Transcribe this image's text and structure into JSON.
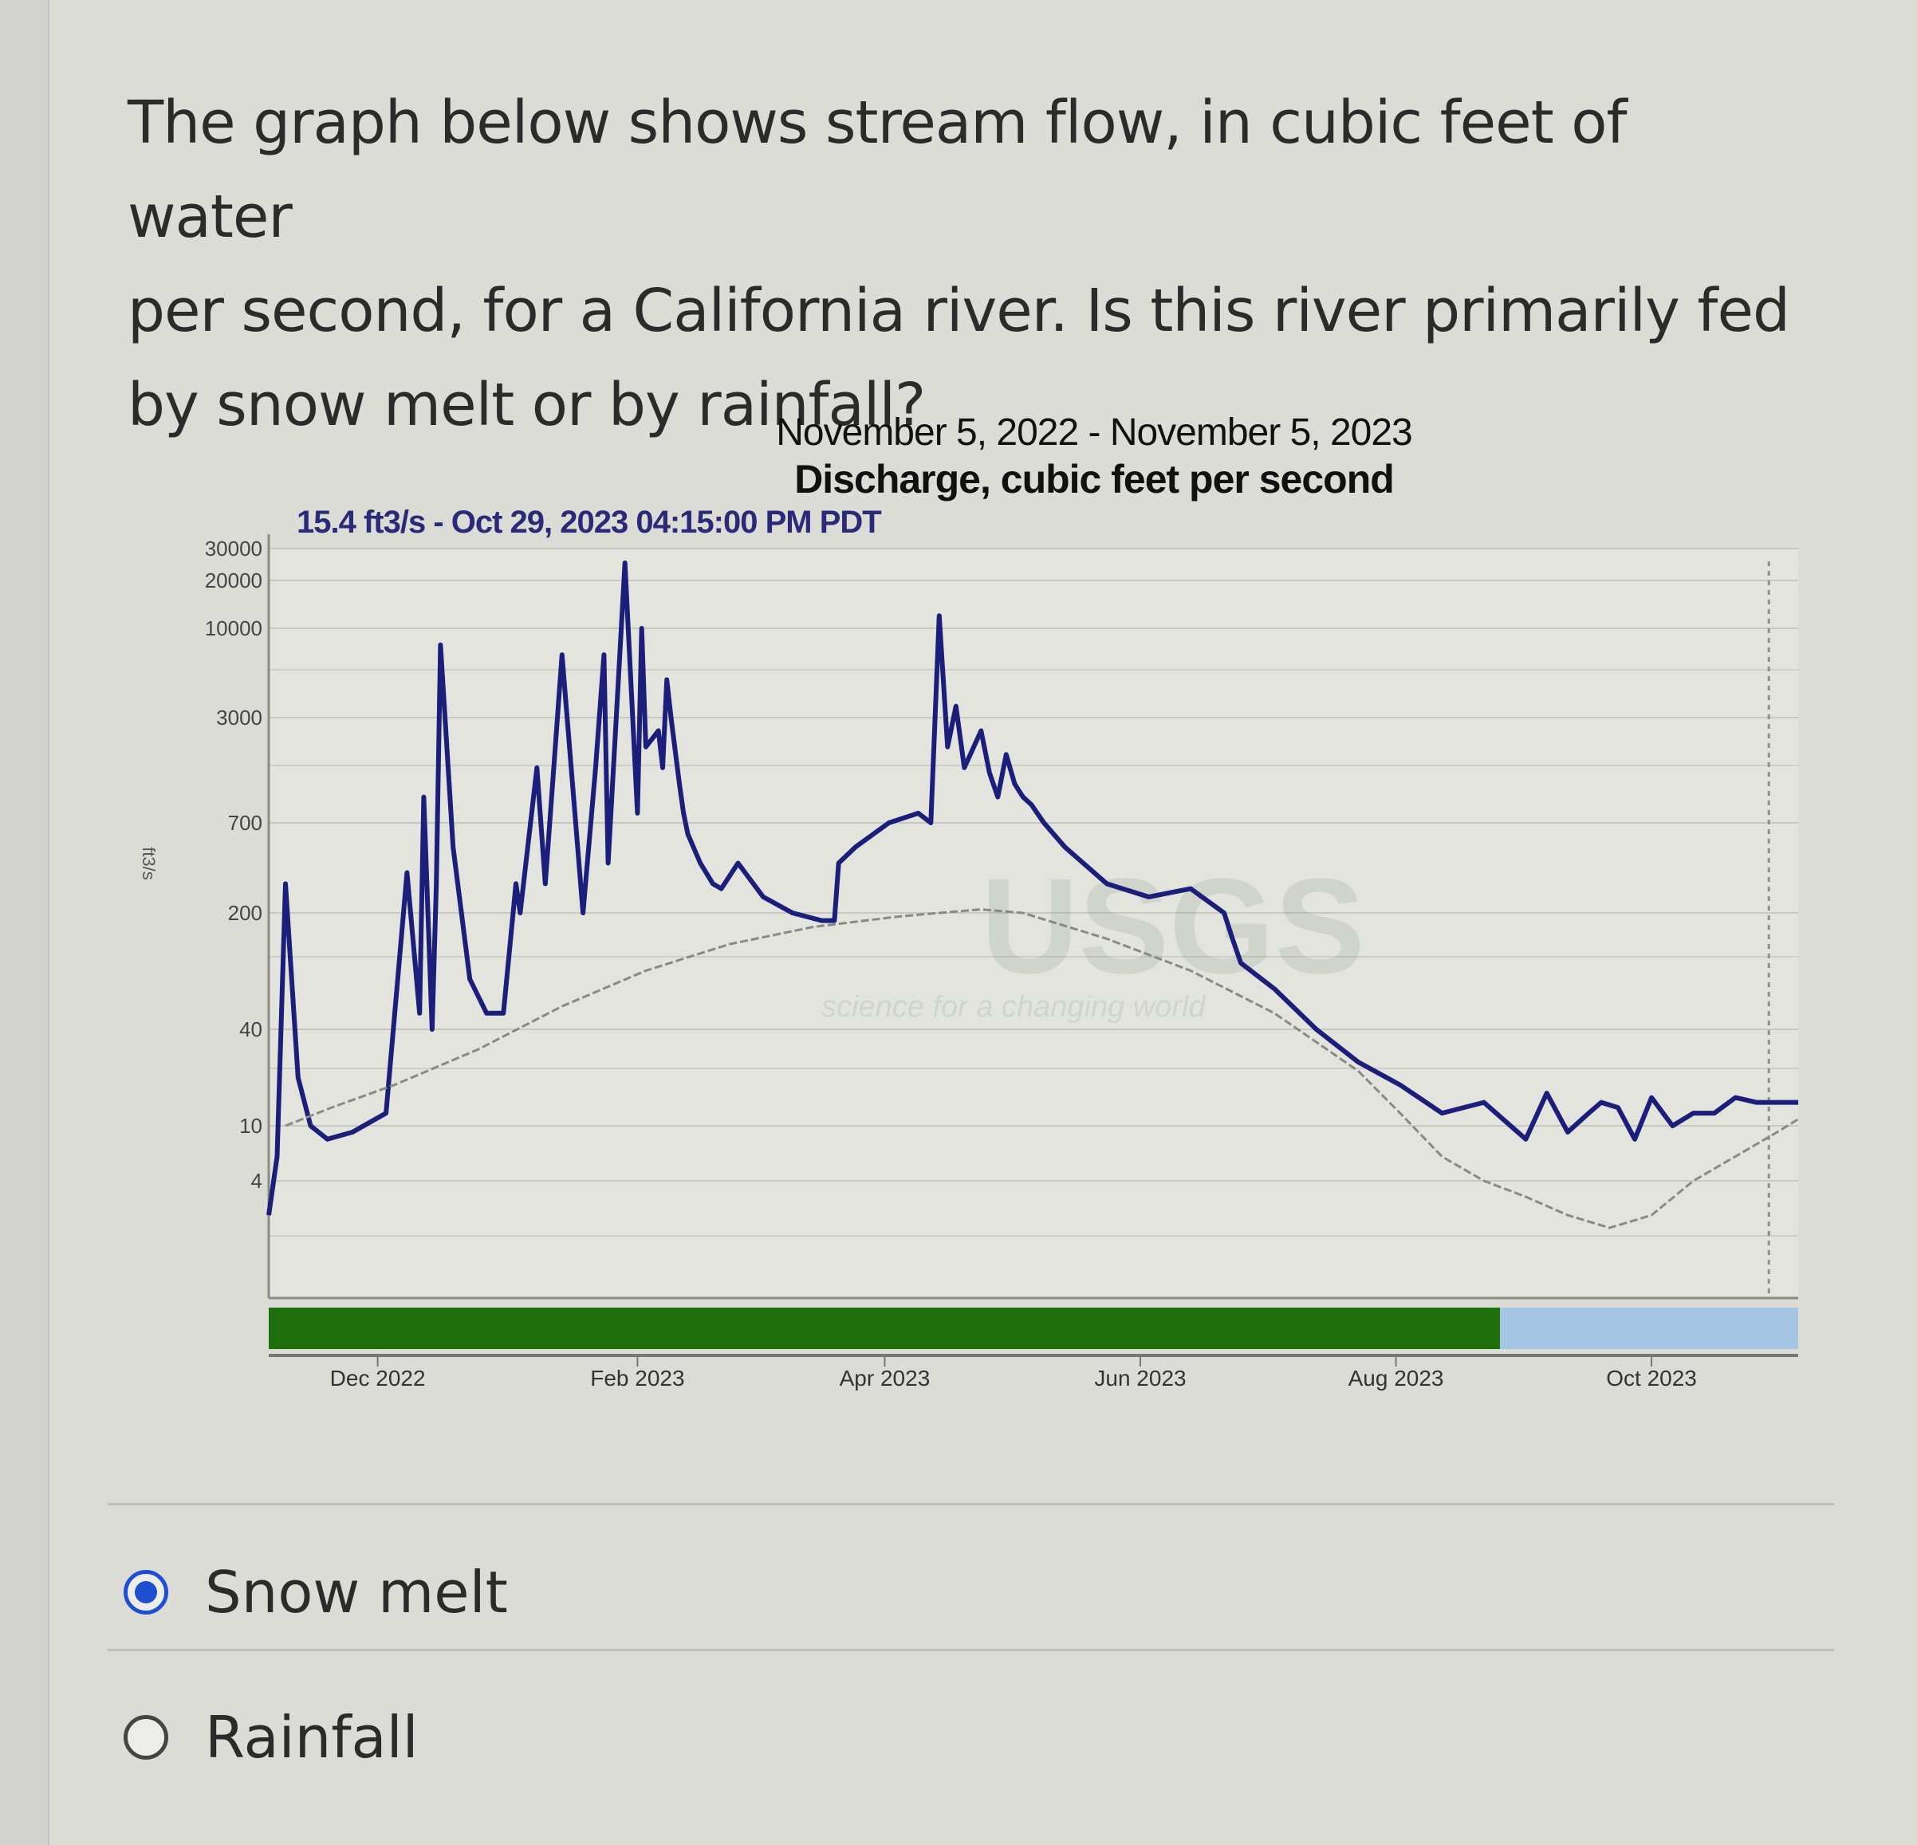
{
  "question": {
    "lines": [
      "The graph below shows stream flow, in cubic feet of water",
      "per second, for a California river. Is this river primarily fed",
      "by snow melt or by rainfall?"
    ]
  },
  "options": [
    {
      "label": "Snow melt",
      "selected": true
    },
    {
      "label": "Rainfall",
      "selected": false
    }
  ],
  "colors": {
    "discharge_line": "#1c1f7a",
    "median_line": "#8a8a85",
    "approved_bar": "#1f6e0c",
    "provisional_bar": "#a4c6e2",
    "selected_radio": "#1f4fd1"
  },
  "chart_data": {
    "type": "line",
    "title": "November 5, 2022 - November 5, 2023",
    "subtitle": "Discharge, cubic feet per second",
    "annotation": "15.4 ft3/s - Oct 29, 2023 04:15:00 PM PDT",
    "ylabel": "ft3/s",
    "yscale": "log",
    "y_ticks": [
      30000,
      20000,
      10000,
      3000,
      700,
      200,
      40,
      10,
      4
    ],
    "x_ticks": [
      "Dec 2022",
      "Feb 2023",
      "Apr 2023",
      "Jun 2023",
      "Aug 2023",
      "Oct 2023"
    ],
    "x_range": [
      "2022-11-05",
      "2023-11-05"
    ],
    "watermark": {
      "logo": "USGS",
      "tagline": "science for a changing world"
    },
    "approval_bar": {
      "approved_until_fraction": 0.805
    },
    "series": [
      {
        "name": "Discharge",
        "x_days": [
          0,
          2,
          4,
          7,
          10,
          14,
          20,
          28,
          33,
          36,
          37,
          39,
          40,
          41,
          44,
          48,
          52,
          56,
          59,
          60,
          64,
          66,
          70,
          75,
          78,
          80,
          81,
          85,
          88,
          89,
          90,
          93,
          94,
          95,
          96,
          98,
          99,
          100,
          103,
          106,
          108,
          112,
          118,
          125,
          132,
          135,
          136,
          140,
          148,
          155,
          158,
          160,
          162,
          164,
          166,
          170,
          172,
          174,
          176,
          178,
          180,
          182,
          185,
          190,
          200,
          210,
          220,
          228,
          230,
          232,
          240,
          250,
          260,
          270,
          280,
          290,
          300,
          305,
          310,
          315,
          318,
          322,
          326,
          330,
          335,
          340,
          345,
          350,
          355,
          360,
          365
        ],
        "values": [
          3,
          6,
          300,
          20,
          10,
          8,
          9,
          12,
          350,
          50,
          1000,
          40,
          300,
          8000,
          500,
          80,
          50,
          50,
          300,
          200,
          1500,
          300,
          7000,
          200,
          1500,
          7000,
          400,
          25000,
          800,
          10000,
          2000,
          2500,
          1500,
          5000,
          3000,
          1200,
          800,
          600,
          400,
          300,
          280,
          400,
          250,
          200,
          180,
          180,
          400,
          500,
          700,
          800,
          700,
          12000,
          2000,
          3500,
          1500,
          2500,
          1400,
          1000,
          1800,
          1200,
          1000,
          900,
          700,
          500,
          300,
          250,
          280,
          200,
          140,
          100,
          70,
          40,
          25,
          18,
          12,
          14,
          8,
          16,
          9,
          12,
          14,
          13,
          8,
          15,
          10,
          12,
          12,
          15,
          14,
          14,
          14
        ]
      },
      {
        "name": "Median daily statistic",
        "x_days": [
          4,
          15,
          30,
          50,
          70,
          90,
          110,
          130,
          150,
          160,
          170,
          180,
          200,
          220,
          240,
          260,
          270,
          280,
          290,
          300,
          310,
          320,
          330,
          340,
          350,
          360,
          365
        ],
        "values": [
          10,
          13,
          18,
          30,
          55,
          90,
          130,
          165,
          190,
          200,
          210,
          200,
          140,
          90,
          50,
          22,
          12,
          6,
          4,
          3.5,
          3,
          2.7,
          3,
          4,
          6,
          9,
          11
        ]
      }
    ]
  }
}
